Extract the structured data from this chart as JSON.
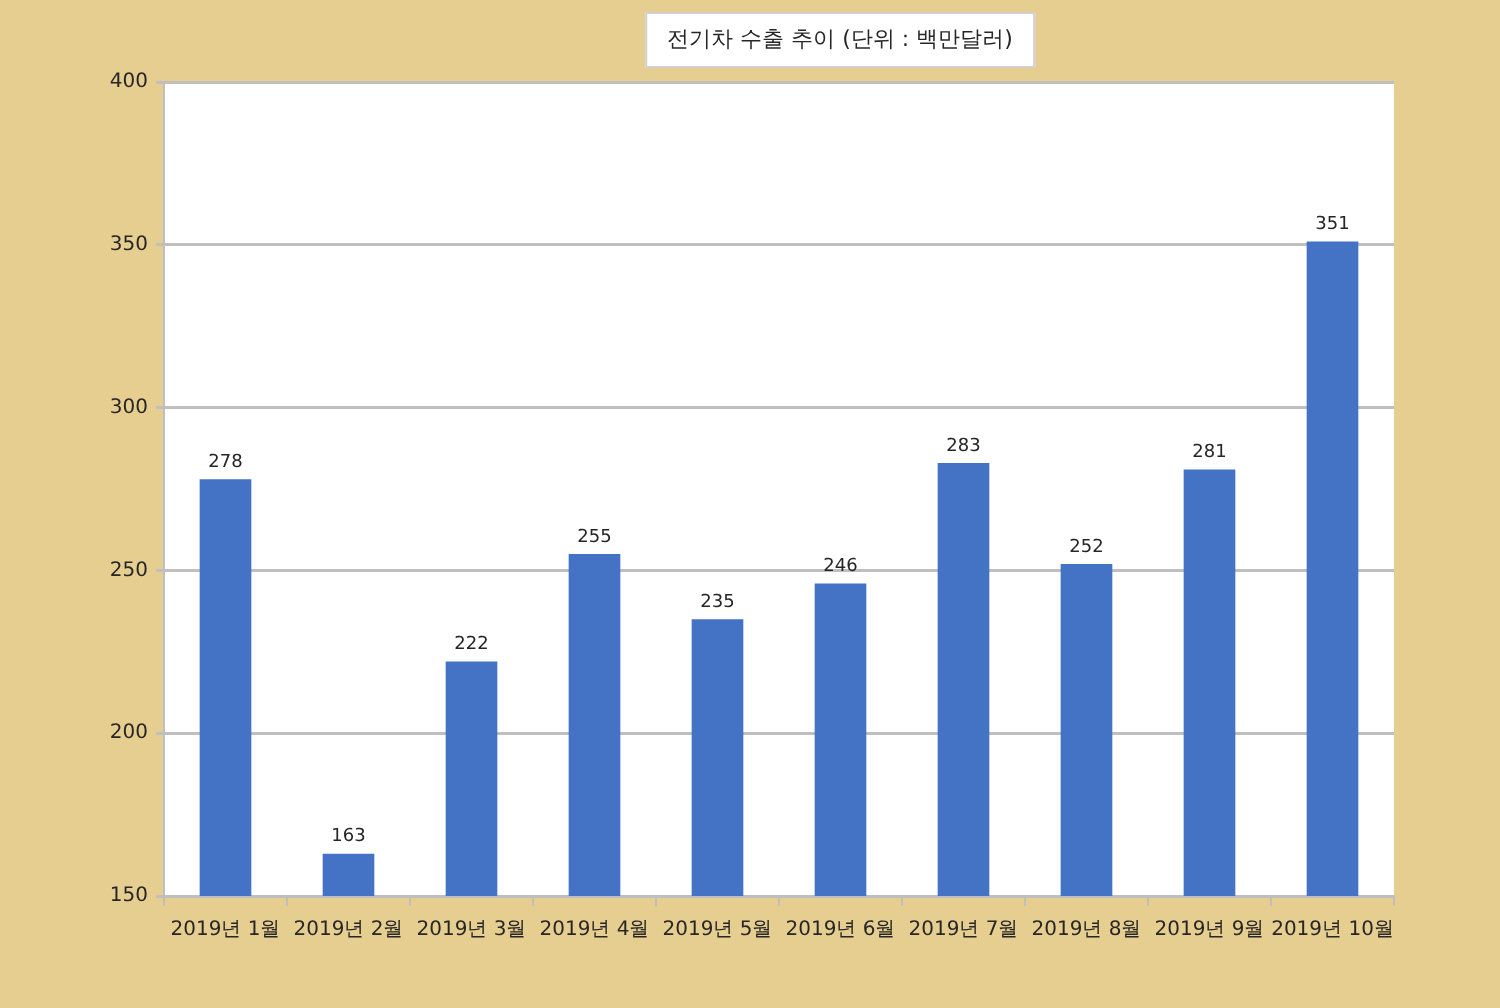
{
  "chart_data": {
    "type": "bar",
    "title": "전기차 수출 추이 (단위 : 백만달러)",
    "categories": [
      "2019년 1월",
      "2019년 2월",
      "2019년 3월",
      "2019년 4월",
      "2019년 5월",
      "2019년 6월",
      "2019년 7월",
      "2019년 8월",
      "2019년 9월",
      "2019년 10월"
    ],
    "values": [
      278,
      163,
      222,
      255,
      235,
      246,
      283,
      252,
      281,
      351
    ],
    "color": "#4472c4",
    "ylim": [
      150,
      400
    ],
    "yticks": [
      150,
      200,
      250,
      300,
      350,
      400
    ],
    "grid": "y",
    "data_labels": true
  }
}
